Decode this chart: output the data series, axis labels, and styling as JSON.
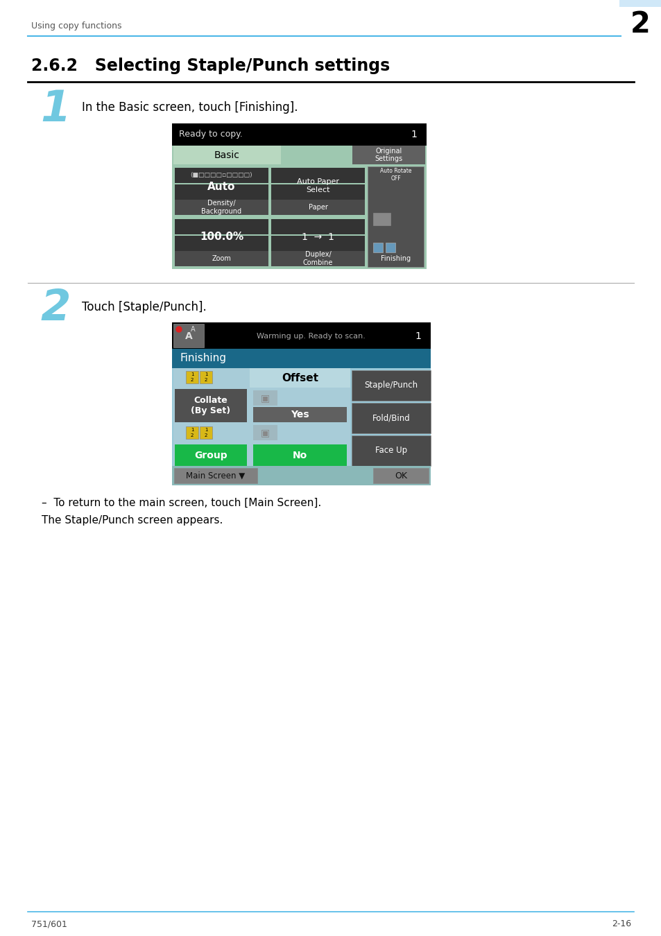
{
  "page_bg": "#ffffff",
  "header_text": "Using copy functions",
  "header_line_color": "#4db8e8",
  "chapter_num": "2",
  "chapter_bg": "#d0e8f8",
  "title": "2.6.2   Selecting Staple/Punch settings",
  "step1_num": "1",
  "step1_text": "In the Basic screen, touch [Finishing].",
  "step2_num": "2",
  "step2_text": "Touch [Staple/Punch].",
  "note_line1": "–  To return to the main screen, touch [Main Screen].",
  "note_line2": "The Staple/Punch screen appears.",
  "footer_left": "751/601",
  "footer_right": "2-16",
  "screen1": {
    "header_text": "Ready to copy.",
    "header_num": "1",
    "tab_text": "Basic",
    "tab2_text": "Original\nSettings",
    "main_bg": "#9ec8b0",
    "tab_bg": "#b8d8c0",
    "tab2_bg": "#606060",
    "cell_dark_bg": "#3a3a3a",
    "cell_label_bg": "#4a4a4a",
    "cell_value_bg": "#3a3a3a"
  },
  "screen2": {
    "header_text": "Warming up. Ready to scan.",
    "header_num": "1",
    "title_bar_bg": "#1a6888",
    "title_bar_text": "Finishing",
    "main_bg": "#98c8d8",
    "left_col_bg": "#b0d8e0",
    "mid_col_bg": "#b0d8e0",
    "btn_dark_bg": "#505050",
    "btn_green_bg": "#18b848",
    "btn_gray_bg": "#606060",
    "offset_text": "Offset",
    "yes_text": "Yes",
    "no_text": "No",
    "collate_text": "Collate\n(By Set)",
    "group_text": "Group",
    "right_btns": [
      "Staple/Punch",
      "Fold/Bind",
      "Face Up"
    ],
    "ok_text": "OK",
    "main_screen_text": "Main Screen ▼",
    "bottom_bar_bg": "#8ab8b8"
  }
}
